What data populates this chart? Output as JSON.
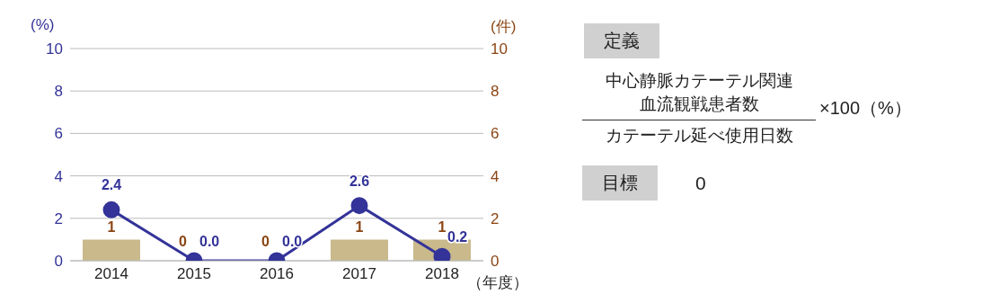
{
  "chart_data": [
    {
      "type": "bar",
      "categories": [
        "2014",
        "2015",
        "2016",
        "2017",
        "2018"
      ],
      "ylabel": "(%)",
      "y2label": "(件)",
      "xlabel": "（年度）",
      "ylim": [
        0,
        10
      ],
      "yticks": [
        0,
        2,
        4,
        6,
        8,
        10
      ],
      "y2lim": [
        0,
        10
      ],
      "y2ticks": [
        0,
        2,
        4,
        6,
        8,
        10
      ],
      "grid": "y",
      "legend": false,
      "series": [
        {
          "type": "bar",
          "axis": "y2",
          "color": "#c9b98b",
          "values": [
            1,
            0,
            0,
            1,
            1
          ],
          "value_labels": [
            "1",
            "0",
            "0",
            "1",
            "1"
          ]
        },
        {
          "type": "line",
          "axis": "y",
          "color": "#333399",
          "marker": "circle",
          "values": [
            2.4,
            0,
            0,
            2.6,
            0.2
          ],
          "value_labels": [
            "2.4",
            "0.0",
            "0.0",
            "2.6",
            "0.2"
          ]
        }
      ]
    },
    {
      "type": "other",
      "annotations": [
        "定義",
        "中心静脈カテーテル関連",
        "血流観戦患者数",
        "カテーテル延べ使用日数",
        "×100（%）",
        "目標",
        "0"
      ]
    }
  ]
}
